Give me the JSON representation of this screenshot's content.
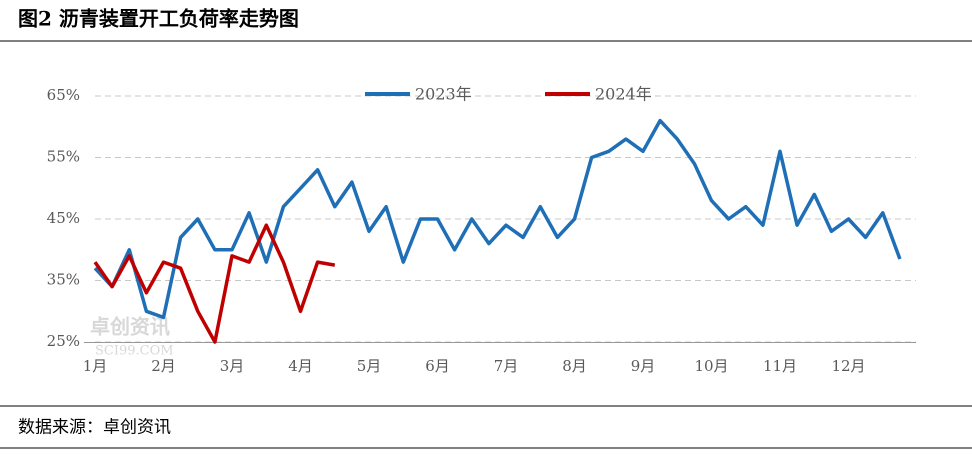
{
  "title": "图2 沥青装置开工负荷率走势图",
  "source": "数据来源：卓创资讯",
  "watermark": [
    "卓创资讯",
    "SCI99.COM"
  ],
  "chart_data": {
    "type": "line",
    "categories": [
      "1月",
      null,
      null,
      null,
      "2月",
      null,
      null,
      null,
      "3月",
      null,
      null,
      null,
      "4月",
      null,
      null,
      null,
      "5月",
      null,
      null,
      null,
      "6月",
      null,
      null,
      null,
      "7月",
      null,
      null,
      null,
      "8月",
      null,
      null,
      null,
      "9月",
      null,
      null,
      null,
      "10月",
      null,
      null,
      null,
      "11月",
      null,
      null,
      null,
      "12月",
      null,
      null,
      null
    ],
    "series": [
      {
        "name": "2023年",
        "color": "#1f6fb6",
        "values": [
          37,
          34,
          40,
          30,
          29,
          42,
          45,
          40,
          40,
          46,
          38,
          47,
          50,
          53,
          47,
          51,
          43,
          47,
          38,
          45,
          45,
          40,
          45,
          41,
          44,
          42,
          47,
          42,
          45,
          55,
          56,
          58,
          56,
          61,
          58,
          54,
          48,
          45,
          47,
          44,
          56,
          44,
          49,
          43,
          45,
          42,
          46,
          38.5
        ]
      },
      {
        "name": "2024年",
        "color": "#c00000",
        "values": [
          38,
          34,
          39,
          33,
          38,
          37,
          30,
          25,
          39,
          38,
          44,
          38,
          30,
          38,
          37.5,
          null,
          null,
          null,
          null,
          null,
          null,
          null,
          null,
          null,
          null,
          null,
          null,
          null,
          null,
          null,
          null,
          null,
          null,
          null,
          null,
          null,
          null,
          null,
          null,
          null,
          null,
          null,
          null,
          null,
          null,
          null,
          null,
          null
        ]
      }
    ],
    "ylim": [
      25,
      65
    ],
    "yticks": [
      {
        "value": 25,
        "label": "25%"
      },
      {
        "value": 35,
        "label": "35%"
      },
      {
        "value": 45,
        "label": "45%"
      },
      {
        "value": 55,
        "label": "55%"
      },
      {
        "value": 65,
        "label": "65%"
      }
    ],
    "grid": true,
    "legend": "top"
  }
}
